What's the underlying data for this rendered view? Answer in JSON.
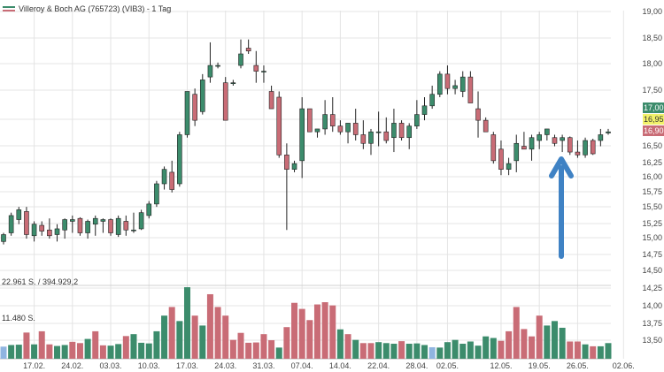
{
  "title": "Villeroy & Boch AG (765723) (VIB3) - 1 Tag",
  "volume_readouts": [
    "22.961 S. / 394.929,2",
    "11.480 S."
  ],
  "colors": {
    "up": "#3c8c6c",
    "down": "#c96c76",
    "neutral": "#8fb4e0",
    "grid": "#e4e4e4",
    "arrow": "#3f82c4",
    "axis_text": "#444444"
  },
  "chart_data": {
    "type": "candlestick",
    "title": "Villeroy & Boch AG (765723) (VIB3) - 1 Tag",
    "y_axis": {
      "ticks": [
        "19,00",
        "18,50",
        "18,00",
        "17,50",
        "17,00",
        "16,50",
        "16,25",
        "16,00",
        "15,75",
        "15,50",
        "15,25",
        "15,00",
        "14,75",
        "14,50",
        "14,25",
        "14,00",
        "13,75",
        "13,50"
      ],
      "tick_values": [
        19.0,
        18.5,
        18.0,
        17.5,
        17.0,
        16.5,
        16.25,
        16.0,
        15.75,
        15.5,
        15.25,
        15.0,
        14.75,
        14.5,
        14.25,
        14.0,
        13.75,
        13.5
      ],
      "price_range": [
        14.5,
        19.0
      ]
    },
    "x_axis": {
      "ticks": [
        "17.02.",
        "24.02.",
        "03.03.",
        "10.03.",
        "17.03.",
        "24.03.",
        "31.03.",
        "07.04.",
        "14.04.",
        "22.04.",
        "28.04.",
        "02.05.",
        "12.05.",
        "19.05.",
        "26.05.",
        "02.06."
      ],
      "tick_index": [
        4,
        9,
        14,
        19,
        24,
        29,
        34,
        39,
        44,
        49,
        54,
        58,
        65,
        70,
        75,
        81
      ]
    },
    "price_labels": [
      {
        "text": "17,00",
        "value": 17.0,
        "bg": "#3c8c6c",
        "fg": "#ffffff"
      },
      {
        "text": "16,95",
        "value": 16.95,
        "bg": "#f2f26a",
        "fg": "#333333"
      },
      {
        "text": "16,90",
        "value": 16.9,
        "bg": "#c96c76",
        "fg": "#ffffff"
      }
    ],
    "candles": [
      {
        "o": 15.0,
        "h": 15.15,
        "l": 14.95,
        "c": 15.12
      },
      {
        "o": 15.15,
        "h": 15.5,
        "l": 15.1,
        "c": 15.45
      },
      {
        "o": 15.38,
        "h": 15.6,
        "l": 15.3,
        "c": 15.55
      },
      {
        "o": 15.52,
        "h": 15.6,
        "l": 15.05,
        "c": 15.12
      },
      {
        "o": 15.1,
        "h": 15.35,
        "l": 15.0,
        "c": 15.3
      },
      {
        "o": 15.28,
        "h": 15.35,
        "l": 15.1,
        "c": 15.18
      },
      {
        "o": 15.2,
        "h": 15.4,
        "l": 15.05,
        "c": 15.1
      },
      {
        "o": 15.12,
        "h": 15.3,
        "l": 15.0,
        "c": 15.22
      },
      {
        "o": 15.2,
        "h": 15.4,
        "l": 15.05,
        "c": 15.38
      },
      {
        "o": 15.35,
        "h": 15.45,
        "l": 15.15,
        "c": 15.38
      },
      {
        "o": 15.4,
        "h": 15.42,
        "l": 15.1,
        "c": 15.15
      },
      {
        "o": 15.15,
        "h": 15.38,
        "l": 15.05,
        "c": 15.35
      },
      {
        "o": 15.3,
        "h": 15.45,
        "l": 15.1,
        "c": 15.4
      },
      {
        "o": 15.35,
        "h": 15.4,
        "l": 15.15,
        "c": 15.38
      },
      {
        "o": 15.38,
        "h": 15.4,
        "l": 15.1,
        "c": 15.15
      },
      {
        "o": 15.12,
        "h": 15.45,
        "l": 15.08,
        "c": 15.4
      },
      {
        "o": 15.35,
        "h": 15.45,
        "l": 15.1,
        "c": 15.2
      },
      {
        "o": 15.2,
        "h": 15.5,
        "l": 15.15,
        "c": 15.2
      },
      {
        "o": 15.22,
        "h": 15.55,
        "l": 15.2,
        "c": 15.5
      },
      {
        "o": 15.45,
        "h": 15.7,
        "l": 15.4,
        "c": 15.65
      },
      {
        "o": 15.65,
        "h": 16.05,
        "l": 15.6,
        "c": 16.0
      },
      {
        "o": 16.0,
        "h": 16.3,
        "l": 15.9,
        "c": 16.25
      },
      {
        "o": 16.2,
        "h": 16.4,
        "l": 15.85,
        "c": 15.9
      },
      {
        "o": 16.0,
        "h": 16.9,
        "l": 15.95,
        "c": 16.85
      },
      {
        "o": 16.85,
        "h": 17.6,
        "l": 16.8,
        "c": 17.6
      },
      {
        "o": 17.55,
        "h": 17.65,
        "l": 17.0,
        "c": 17.1
      },
      {
        "o": 17.25,
        "h": 17.9,
        "l": 17.2,
        "c": 17.8
      },
      {
        "o": 17.85,
        "h": 18.45,
        "l": 17.75,
        "c": 18.05
      },
      {
        "o": 18.05,
        "h": 18.1,
        "l": 18.0,
        "c": 18.05
      },
      {
        "o": 17.75,
        "h": 17.85,
        "l": 17.1,
        "c": 17.1
      },
      {
        "o": 17.75,
        "h": 17.8,
        "l": 17.7,
        "c": 17.75
      },
      {
        "o": 18.05,
        "h": 18.5,
        "l": 18.0,
        "c": 18.25
      },
      {
        "o": 18.35,
        "h": 18.5,
        "l": 18.25,
        "c": 18.3
      },
      {
        "o": 18.05,
        "h": 18.3,
        "l": 17.75,
        "c": 17.95
      },
      {
        "o": 17.95,
        "h": 18.05,
        "l": 17.75,
        "c": 17.95
      },
      {
        "o": 17.6,
        "h": 17.7,
        "l": 17.3,
        "c": 17.3
      },
      {
        "o": 17.5,
        "h": 17.6,
        "l": 16.45,
        "c": 16.5
      },
      {
        "o": 16.5,
        "h": 16.7,
        "l": 15.2,
        "c": 16.25
      },
      {
        "o": 16.25,
        "h": 16.4,
        "l": 16.2,
        "c": 16.35
      },
      {
        "o": 16.4,
        "h": 17.5,
        "l": 16.1,
        "c": 17.3
      },
      {
        "o": 17.3,
        "h": 17.3,
        "l": 16.9,
        "c": 16.9
      },
      {
        "o": 16.9,
        "h": 16.95,
        "l": 16.8,
        "c": 16.95
      },
      {
        "o": 16.95,
        "h": 17.45,
        "l": 16.85,
        "c": 17.2
      },
      {
        "o": 17.2,
        "h": 17.5,
        "l": 16.9,
        "c": 17.0
      },
      {
        "o": 17.0,
        "h": 17.1,
        "l": 16.85,
        "c": 16.9
      },
      {
        "o": 16.9,
        "h": 17.05,
        "l": 16.7,
        "c": 17.05
      },
      {
        "o": 17.05,
        "h": 17.3,
        "l": 16.75,
        "c": 16.85
      },
      {
        "o": 16.85,
        "h": 17.1,
        "l": 16.6,
        "c": 16.7
      },
      {
        "o": 16.7,
        "h": 16.95,
        "l": 16.5,
        "c": 16.9
      },
      {
        "o": 16.9,
        "h": 17.25,
        "l": 16.65,
        "c": 16.9
      },
      {
        "o": 16.9,
        "h": 17.15,
        "l": 16.7,
        "c": 16.75
      },
      {
        "o": 16.8,
        "h": 17.3,
        "l": 16.55,
        "c": 17.05
      },
      {
        "o": 17.05,
        "h": 17.1,
        "l": 16.75,
        "c": 16.8
      },
      {
        "o": 16.8,
        "h": 17.05,
        "l": 16.6,
        "c": 17.0
      },
      {
        "o": 17.0,
        "h": 17.45,
        "l": 16.95,
        "c": 17.2
      },
      {
        "o": 17.2,
        "h": 17.5,
        "l": 17.1,
        "c": 17.35
      },
      {
        "o": 17.35,
        "h": 17.7,
        "l": 17.3,
        "c": 17.55
      },
      {
        "o": 17.55,
        "h": 17.95,
        "l": 17.5,
        "c": 17.9
      },
      {
        "o": 17.9,
        "h": 18.05,
        "l": 17.55,
        "c": 17.65
      },
      {
        "o": 17.65,
        "h": 17.8,
        "l": 17.55,
        "c": 17.7
      },
      {
        "o": 17.6,
        "h": 17.95,
        "l": 17.5,
        "c": 17.85
      },
      {
        "o": 17.85,
        "h": 17.95,
        "l": 17.4,
        "c": 17.4
      },
      {
        "o": 17.3,
        "h": 17.6,
        "l": 16.8,
        "c": 17.1
      },
      {
        "o": 17.1,
        "h": 17.15,
        "l": 16.9,
        "c": 16.9
      },
      {
        "o": 16.85,
        "h": 16.9,
        "l": 16.35,
        "c": 16.4
      },
      {
        "o": 16.6,
        "h": 16.75,
        "l": 16.15,
        "c": 16.25
      },
      {
        "o": 16.25,
        "h": 16.45,
        "l": 16.15,
        "c": 16.35
      },
      {
        "o": 16.4,
        "h": 16.85,
        "l": 16.2,
        "c": 16.7
      },
      {
        "o": 16.65,
        "h": 16.9,
        "l": 16.6,
        "c": 16.6
      },
      {
        "o": 16.6,
        "h": 16.85,
        "l": 16.4,
        "c": 16.8
      },
      {
        "o": 16.75,
        "h": 16.9,
        "l": 16.6,
        "c": 16.85
      },
      {
        "o": 16.85,
        "h": 16.95,
        "l": 16.75,
        "c": 16.95
      },
      {
        "o": 16.8,
        "h": 16.85,
        "l": 16.65,
        "c": 16.7
      },
      {
        "o": 16.75,
        "h": 16.85,
        "l": 16.55,
        "c": 16.8
      },
      {
        "o": 16.8,
        "h": 16.82,
        "l": 16.5,
        "c": 16.55
      },
      {
        "o": 16.55,
        "h": 16.75,
        "l": 16.45,
        "c": 16.5
      },
      {
        "o": 16.5,
        "h": 16.8,
        "l": 16.45,
        "c": 16.75
      },
      {
        "o": 16.75,
        "h": 16.78,
        "l": 16.5,
        "c": 16.52
      },
      {
        "o": 16.75,
        "h": 16.95,
        "l": 16.65,
        "c": 16.85
      },
      {
        "o": 16.88,
        "h": 16.95,
        "l": 16.85,
        "c": 16.9
      }
    ],
    "volume_axis": {
      "range": [
        0,
        22961
      ],
      "readout_values": [
        22961,
        11480
      ]
    },
    "volumes": [
      {
        "v": 3800,
        "d": "neutral"
      },
      {
        "v": 4300,
        "d": "up"
      },
      {
        "v": 4400,
        "d": "up"
      },
      {
        "v": 8200,
        "d": "down"
      },
      {
        "v": 4500,
        "d": "up"
      },
      {
        "v": 8600,
        "d": "down"
      },
      {
        "v": 4500,
        "d": "down"
      },
      {
        "v": 4000,
        "d": "up"
      },
      {
        "v": 4300,
        "d": "up"
      },
      {
        "v": 5300,
        "d": "down"
      },
      {
        "v": 4900,
        "d": "down"
      },
      {
        "v": 6200,
        "d": "up"
      },
      {
        "v": 8600,
        "d": "down"
      },
      {
        "v": 4200,
        "d": "down"
      },
      {
        "v": 4100,
        "d": "up"
      },
      {
        "v": 4600,
        "d": "up"
      },
      {
        "v": 7100,
        "d": "down"
      },
      {
        "v": 7700,
        "d": "up"
      },
      {
        "v": 5000,
        "d": "up"
      },
      {
        "v": 4800,
        "d": "up"
      },
      {
        "v": 8600,
        "d": "up"
      },
      {
        "v": 13500,
        "d": "up"
      },
      {
        "v": 16200,
        "d": "down"
      },
      {
        "v": 11800,
        "d": "up"
      },
      {
        "v": 22400,
        "d": "up"
      },
      {
        "v": 13500,
        "d": "down"
      },
      {
        "v": 10400,
        "d": "up"
      },
      {
        "v": 20200,
        "d": "down"
      },
      {
        "v": 16200,
        "d": "down"
      },
      {
        "v": 13500,
        "d": "down"
      },
      {
        "v": 5900,
        "d": "down"
      },
      {
        "v": 8100,
        "d": "down"
      },
      {
        "v": 5000,
        "d": "down"
      },
      {
        "v": 5100,
        "d": "down"
      },
      {
        "v": 7700,
        "d": "down"
      },
      {
        "v": 5800,
        "d": "down"
      },
      {
        "v": 3500,
        "d": "up"
      },
      {
        "v": 9900,
        "d": "down"
      },
      {
        "v": 17500,
        "d": "down"
      },
      {
        "v": 15600,
        "d": "down"
      },
      {
        "v": 12100,
        "d": "down"
      },
      {
        "v": 17000,
        "d": "down"
      },
      {
        "v": 17700,
        "d": "down"
      },
      {
        "v": 16700,
        "d": "down"
      },
      {
        "v": 9200,
        "d": "up"
      },
      {
        "v": 7700,
        "d": "down"
      },
      {
        "v": 5900,
        "d": "up"
      },
      {
        "v": 4900,
        "d": "down"
      },
      {
        "v": 4900,
        "d": "down"
      },
      {
        "v": 5200,
        "d": "up"
      },
      {
        "v": 4900,
        "d": "up"
      },
      {
        "v": 4700,
        "d": "up"
      },
      {
        "v": 5500,
        "d": "down"
      },
      {
        "v": 4700,
        "d": "up"
      },
      {
        "v": 4800,
        "d": "up"
      },
      {
        "v": 4300,
        "d": "up"
      },
      {
        "v": 3600,
        "d": "neutral"
      },
      {
        "v": 3500,
        "d": "up"
      },
      {
        "v": 5200,
        "d": "up"
      },
      {
        "v": 5900,
        "d": "up"
      },
      {
        "v": 4700,
        "d": "up"
      },
      {
        "v": 5400,
        "d": "up"
      },
      {
        "v": 4100,
        "d": "up"
      },
      {
        "v": 7000,
        "d": "up"
      },
      {
        "v": 6500,
        "d": "up"
      },
      {
        "v": 5600,
        "d": "down"
      },
      {
        "v": 8600,
        "d": "down"
      },
      {
        "v": 16200,
        "d": "down"
      },
      {
        "v": 9300,
        "d": "down"
      },
      {
        "v": 7000,
        "d": "down"
      },
      {
        "v": 13500,
        "d": "down"
      },
      {
        "v": 10400,
        "d": "up"
      },
      {
        "v": 11800,
        "d": "up"
      },
      {
        "v": 9700,
        "d": "up"
      },
      {
        "v": 5400,
        "d": "down"
      },
      {
        "v": 5400,
        "d": "down"
      },
      {
        "v": 4500,
        "d": "up"
      },
      {
        "v": 3900,
        "d": "down"
      },
      {
        "v": 3900,
        "d": "up"
      },
      {
        "v": 4900,
        "d": "up"
      }
    ]
  }
}
